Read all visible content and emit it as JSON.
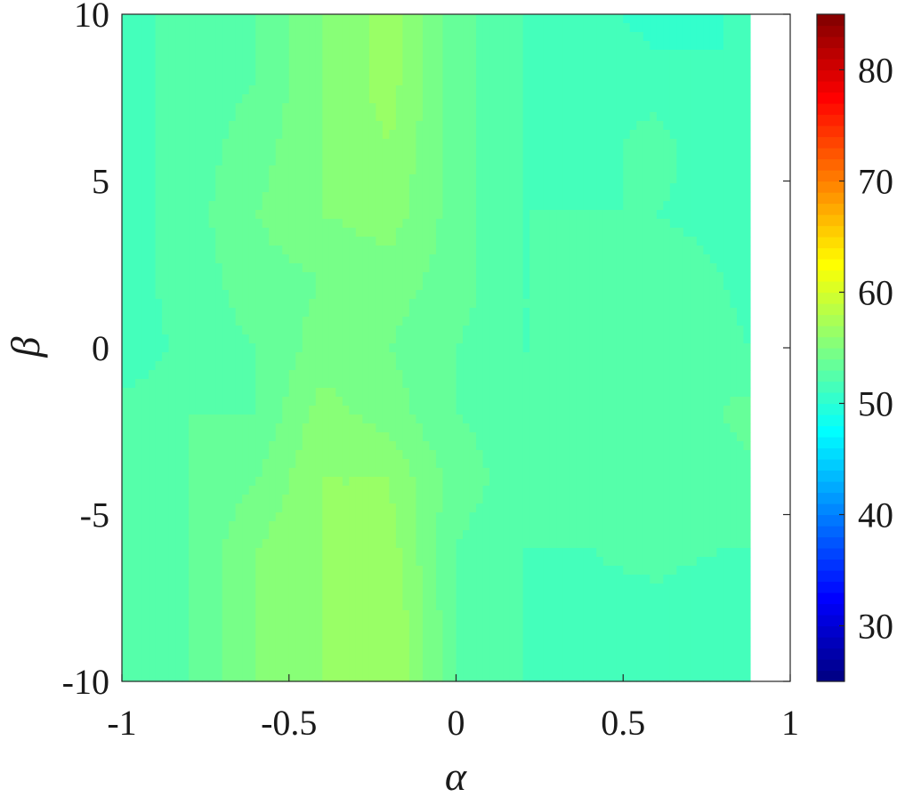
{
  "chart_data": {
    "type": "heatmap",
    "subtype": "filled-contour",
    "title": "",
    "xlabel": "α",
    "ylabel": "β",
    "xlim": [
      -1,
      1
    ],
    "ylim": [
      -10,
      10
    ],
    "x_ticks": [
      -1,
      -0.5,
      0,
      0.5,
      1
    ],
    "x_tick_labels": [
      "-1",
      "-0.5",
      "0",
      "0.5",
      "1"
    ],
    "y_ticks": [
      -10,
      -5,
      0,
      5,
      10
    ],
    "y_tick_labels": [
      "-10",
      "-5",
      "0",
      "5",
      "10"
    ],
    "data_x_extent": [
      -1,
      0.88
    ],
    "colormap": "jet",
    "colorbar": {
      "range": [
        25,
        85
      ],
      "ticks": [
        30,
        40,
        50,
        60,
        70,
        80
      ],
      "tick_labels": [
        "30",
        "40",
        "50",
        "60",
        "70",
        "80"
      ],
      "levels": 60
    },
    "grid": false,
    "x": [
      -1,
      -0.8,
      -0.6,
      -0.4,
      -0.2,
      0,
      0.2,
      0.4,
      0.6,
      0.8,
      0.88
    ],
    "y": [
      10,
      8,
      6,
      4,
      2,
      0,
      -2,
      -4,
      -6,
      -8,
      -10
    ],
    "z": [
      [
        51.5,
        52.5,
        53.0,
        55.0,
        56.5,
        53.5,
        52.0,
        51.5,
        50.5,
        51.0,
        51.0
      ],
      [
        51.5,
        52.5,
        53.0,
        55.0,
        56.5,
        53.5,
        52.0,
        51.5,
        51.5,
        51.0,
        51.0
      ],
      [
        51.5,
        52.5,
        53.5,
        55.0,
        56.0,
        53.5,
        52.0,
        51.5,
        52.5,
        51.0,
        51.0
      ],
      [
        51.5,
        52.5,
        54.0,
        55.0,
        55.5,
        53.5,
        52.0,
        52.0,
        52.0,
        51.5,
        51.0
      ],
      [
        51.5,
        52.5,
        53.5,
        54.0,
        54.5,
        53.5,
        52.0,
        52.0,
        53.0,
        52.0,
        51.5
      ],
      [
        51.0,
        52.5,
        53.0,
        54.5,
        54.0,
        53.0,
        52.0,
        52.0,
        52.0,
        52.5,
        52.0
      ],
      [
        52.5,
        53.0,
        53.0,
        55.5,
        54.5,
        53.0,
        52.5,
        53.0,
        52.5,
        53.0,
        53.5
      ],
      [
        52.5,
        53.0,
        54.0,
        56.0,
        56.0,
        53.5,
        52.5,
        52.5,
        52.5,
        52.5,
        52.5
      ],
      [
        52.5,
        53.0,
        55.0,
        56.0,
        56.5,
        53.0,
        52.0,
        52.0,
        52.5,
        52.0,
        52.0
      ],
      [
        52.0,
        53.0,
        55.0,
        56.0,
        57.0,
        53.0,
        52.0,
        51.5,
        51.5,
        51.0,
        51.5
      ],
      [
        52.0,
        53.0,
        55.0,
        56.0,
        57.0,
        53.0,
        52.0,
        51.5,
        51.0,
        51.0,
        51.0
      ]
    ]
  }
}
